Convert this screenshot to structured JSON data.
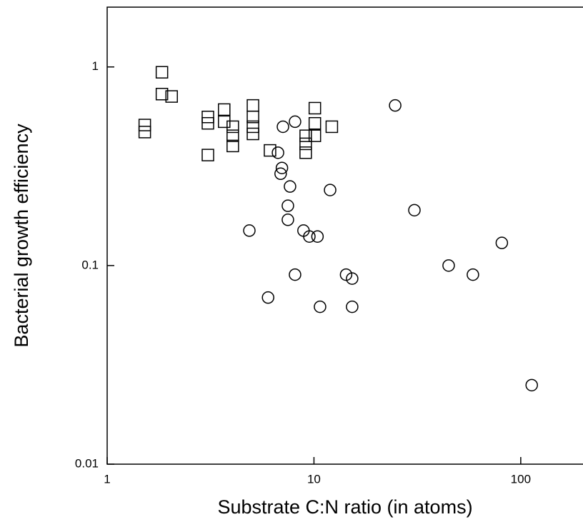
{
  "chart_data": {
    "type": "scatter",
    "x_label": "Substrate C:N ratio (in atoms)",
    "y_label": "Bacterial growth efficiency",
    "xscale": "log",
    "yscale": "log",
    "xlim": [
      1,
      200
    ],
    "ylim": [
      0.01,
      2
    ],
    "xticks": [
      1,
      10,
      100
    ],
    "yticks": [
      0.01,
      0.1,
      1
    ],
    "series": [
      {
        "marker": "square",
        "color": "#000000",
        "x": [
          1.52,
          1.52,
          1.84,
          1.84,
          2.05,
          3.07,
          3.07,
          3.07,
          3.68,
          3.68,
          4.05,
          4.05,
          4.05,
          5.07,
          5.07,
          5.07,
          5.07,
          6.13,
          9.12,
          9.12,
          9.12,
          10.1,
          10.1,
          10.1,
          12.2
        ],
        "values": [
          0.51,
          0.47,
          0.94,
          0.73,
          0.71,
          0.56,
          0.52,
          0.36,
          0.61,
          0.53,
          0.5,
          0.45,
          0.4,
          0.64,
          0.56,
          0.5,
          0.46,
          0.38,
          0.45,
          0.41,
          0.37,
          0.62,
          0.52,
          0.45,
          0.5
        ]
      },
      {
        "marker": "circle",
        "color": "#000000",
        "x": [
          24.7,
          7.08,
          8.1,
          6.7,
          7.0,
          6.9,
          7.66,
          11.97,
          7.48,
          7.48,
          4.87,
          8.9,
          9.5,
          10.4,
          30.6,
          81,
          44.8,
          58.7,
          8.1,
          14.3,
          15.3,
          6.0,
          10.7,
          15.3,
          113
        ],
        "values": [
          0.64,
          0.5,
          0.53,
          0.37,
          0.31,
          0.29,
          0.25,
          0.24,
          0.2,
          0.17,
          0.15,
          0.15,
          0.14,
          0.14,
          0.19,
          0.13,
          0.1,
          0.09,
          0.09,
          0.09,
          0.086,
          0.069,
          0.062,
          0.062,
          0.025
        ]
      }
    ]
  }
}
